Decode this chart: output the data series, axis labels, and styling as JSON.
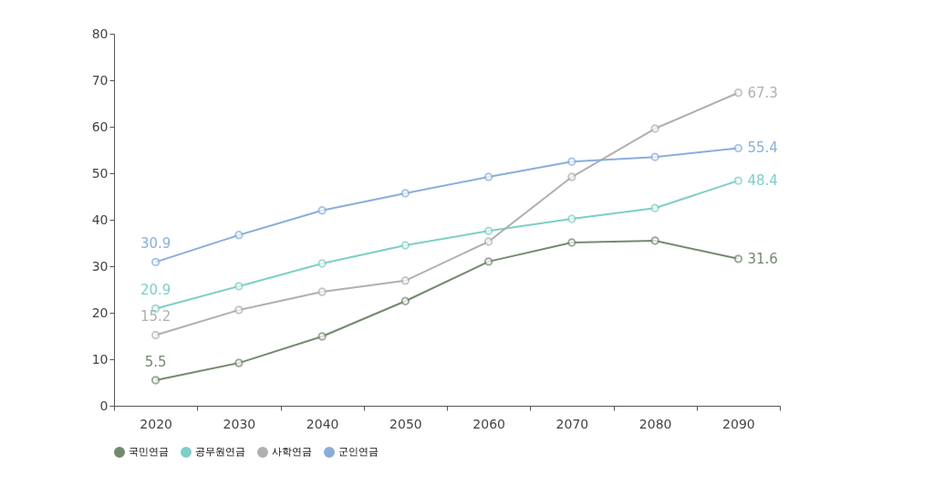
{
  "chart_data": {
    "type": "line",
    "categories": [
      "2020",
      "2030",
      "2040",
      "2050",
      "2060",
      "2070",
      "2080",
      "2090"
    ],
    "ylim": [
      0,
      80
    ],
    "yticks": [
      0,
      10,
      20,
      30,
      40,
      50,
      60,
      70,
      80
    ],
    "grid": false,
    "legend": "bottom",
    "marker": "circle",
    "line_style": "solid",
    "series": [
      {
        "name": "국민연금",
        "color": "#748a6e",
        "values": [
          5.5,
          9.2,
          14.9,
          22.5,
          31.0,
          35.1,
          35.5,
          31.6
        ],
        "value_labels": [
          "5.5",
          null,
          null,
          null,
          null,
          null,
          null,
          "31.6"
        ]
      },
      {
        "name": "공무원연금",
        "color": "#7ecfc6",
        "values": [
          20.9,
          25.7,
          30.6,
          34.5,
          37.6,
          40.2,
          42.5,
          48.4
        ],
        "value_labels": [
          "20.9",
          null,
          null,
          null,
          null,
          null,
          null,
          "48.4"
        ]
      },
      {
        "name": "사학연금",
        "color": "#b0b0b0",
        "values": [
          15.2,
          20.6,
          24.5,
          26.9,
          35.3,
          49.2,
          59.6,
          67.3
        ],
        "value_labels": [
          "15.2",
          null,
          null,
          null,
          null,
          null,
          null,
          "67.3"
        ]
      },
      {
        "name": "군인연금",
        "color": "#8aaedc",
        "values": [
          30.9,
          36.7,
          42.0,
          45.7,
          49.2,
          52.5,
          53.5,
          55.4
        ],
        "value_labels": [
          "30.9",
          null,
          null,
          null,
          null,
          null,
          null,
          "55.4"
        ]
      }
    ]
  }
}
